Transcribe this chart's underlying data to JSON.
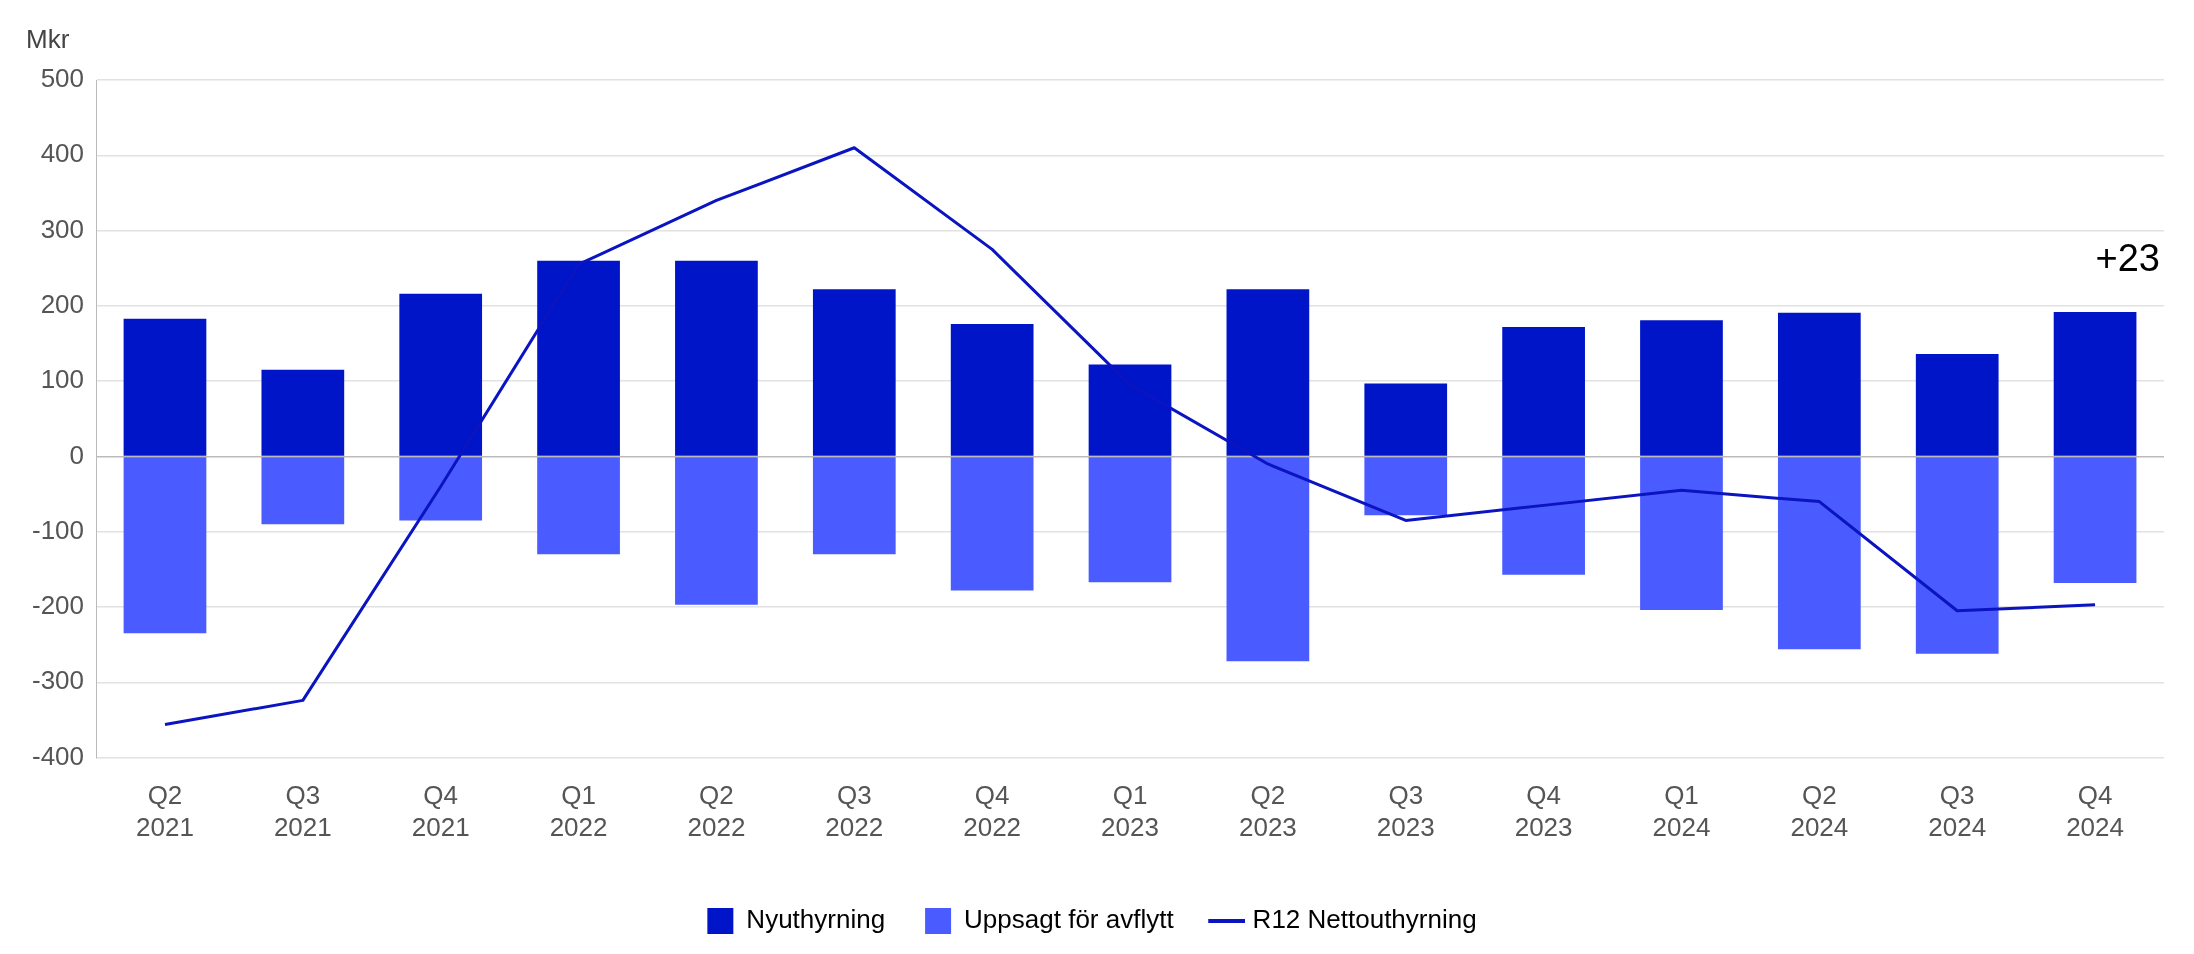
{
  "chart_data": {
    "type": "bar",
    "ylabel": "Mkr",
    "stacked": true,
    "categories": [
      "Q2 2021",
      "Q3 2021",
      "Q4 2021",
      "Q1 2022",
      "Q2 2022",
      "Q3 2022",
      "Q4 2022",
      "Q1 2023",
      "Q2 2023",
      "Q3 2023",
      "Q4 2023",
      "Q1 2024",
      "Q2 2024",
      "Q3 2024",
      "Q4 2024"
    ],
    "series": [
      {
        "name": "Nyuthyrning",
        "color": "#0014c8",
        "values": [
          183,
          115,
          216,
          260,
          260,
          222,
          176,
          122,
          222,
          97,
          172,
          181,
          191,
          136,
          192
        ]
      },
      {
        "name": "Uppsagt för avflytt",
        "color": "#4a5bff",
        "values": [
          -235,
          -90,
          -85,
          -130,
          -197,
          -130,
          -178,
          -167,
          -272,
          -78,
          -157,
          -204,
          -256,
          -262,
          -168
        ]
      },
      {
        "name": "R12 Nettouthyrning",
        "type": "line",
        "color": "#0a14c0",
        "values": [
          -356,
          -324,
          -40,
          255,
          340,
          410,
          275,
          95,
          -10,
          -85,
          -65,
          -45,
          -60,
          -205,
          -197
        ]
      }
    ],
    "ylim": [
      -400,
      500
    ],
    "yticks": [
      -400,
      -300,
      -200,
      -100,
      0,
      100,
      200,
      300,
      400,
      500
    ],
    "grid": "y",
    "legend": "bottom",
    "marker": "none",
    "annotations": [
      "+23"
    ]
  }
}
